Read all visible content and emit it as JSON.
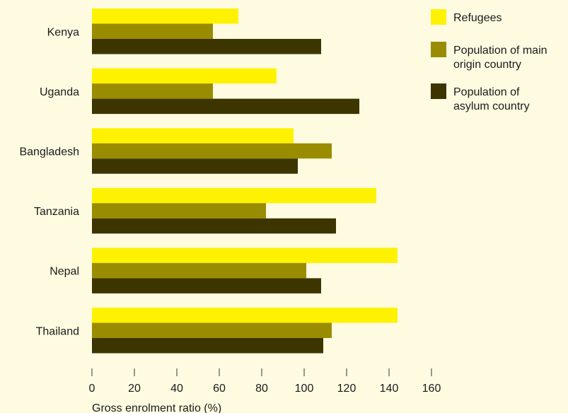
{
  "chart_data": {
    "type": "bar",
    "orientation": "horizontal",
    "categories": [
      "Kenya",
      "Uganda",
      "Bangladesh",
      "Tanzania",
      "Nepal",
      "Thailand"
    ],
    "series": [
      {
        "name": "Refugees",
        "color": "#fff200",
        "values": [
          69,
          87,
          95,
          134,
          144,
          144
        ]
      },
      {
        "name": "Population of main origin country",
        "name_lines": [
          "Population of main",
          "origin country"
        ],
        "color": "#9a8c00",
        "values": [
          57,
          57,
          113,
          82,
          101,
          113
        ]
      },
      {
        "name": "Population of asylum country",
        "name_lines": [
          "Population of",
          "asylum country"
        ],
        "color": "#3d3500",
        "values": [
          108,
          126,
          97,
          115,
          108,
          109
        ]
      }
    ],
    "xlabel": "Gross enrolment ratio (%)",
    "xlim": [
      0,
      160
    ],
    "xticks": [
      0,
      20,
      40,
      60,
      80,
      100,
      120,
      140,
      160
    ],
    "grid": false,
    "legend_position": "top-right"
  }
}
